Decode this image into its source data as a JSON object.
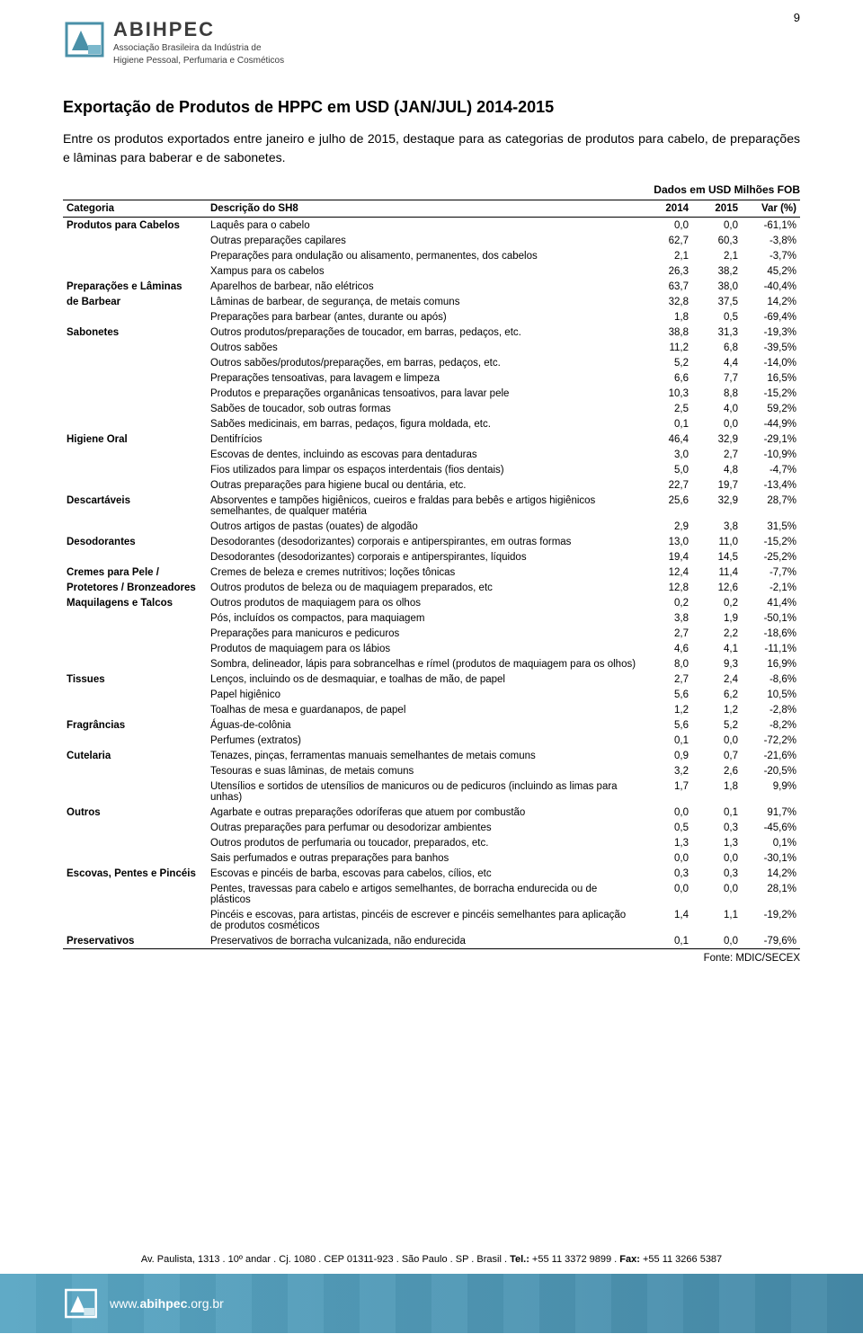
{
  "page_number": "9",
  "logo": {
    "name": "ABIHPEC",
    "subline1": "Associação Brasileira da Indústria de",
    "subline2": "Higiene Pessoal, Perfumaria e Cosméticos",
    "primary_color": "#4a90a8",
    "accent_color": "#3c3c3c"
  },
  "title": "Exportação de Produtos de HPPC em USD (JAN/JUL) 2014-2015",
  "intro": "Entre os produtos exportados entre janeiro e julho de 2015, destaque para as categorias de produtos para cabelo, de preparações e lâminas para baberar e de sabonetes.",
  "table_caption": "Dados em USD Milhões FOB",
  "columns": [
    "Categoria",
    "Descrição do SH8",
    "2014",
    "2015",
    "Var (%)"
  ],
  "rows": [
    {
      "cat": "Produtos para Cabelos",
      "desc": "Laquês para o cabelo",
      "v14": "0,0",
      "v15": "0,0",
      "var": "-61,1%"
    },
    {
      "cat": "",
      "desc": "Outras preparações capilares",
      "v14": "62,7",
      "v15": "60,3",
      "var": "-3,8%"
    },
    {
      "cat": "",
      "desc": "Preparações para ondulação ou alisamento, permanentes, dos cabelos",
      "v14": "2,1",
      "v15": "2,1",
      "var": "-3,7%"
    },
    {
      "cat": "",
      "desc": "Xampus para os cabelos",
      "v14": "26,3",
      "v15": "38,2",
      "var": "45,2%"
    },
    {
      "cat": "Preparações e Lâminas",
      "desc": "Aparelhos de barbear, não elétricos",
      "v14": "63,7",
      "v15": "38,0",
      "var": "-40,4%"
    },
    {
      "cat": "de Barbear",
      "desc": "Lâminas de barbear, de segurança, de metais comuns",
      "v14": "32,8",
      "v15": "37,5",
      "var": "14,2%"
    },
    {
      "cat": "",
      "desc": "Preparações para barbear (antes, durante ou após)",
      "v14": "1,8",
      "v15": "0,5",
      "var": "-69,4%"
    },
    {
      "cat": "Sabonetes",
      "desc": "Outros produtos/preparações de toucador, em barras, pedaços, etc.",
      "v14": "38,8",
      "v15": "31,3",
      "var": "-19,3%"
    },
    {
      "cat": "",
      "desc": "Outros sabões",
      "v14": "11,2",
      "v15": "6,8",
      "var": "-39,5%"
    },
    {
      "cat": "",
      "desc": "Outros sabões/produtos/preparações, em barras, pedaços, etc.",
      "v14": "5,2",
      "v15": "4,4",
      "var": "-14,0%"
    },
    {
      "cat": "",
      "desc": "Preparações tensoativas, para lavagem e limpeza",
      "v14": "6,6",
      "v15": "7,7",
      "var": "16,5%"
    },
    {
      "cat": "",
      "desc": "Produtos e preparações organânicas tensoativos, para lavar pele",
      "v14": "10,3",
      "v15": "8,8",
      "var": "-15,2%"
    },
    {
      "cat": "",
      "desc": "Sabões de toucador, sob outras formas",
      "v14": "2,5",
      "v15": "4,0",
      "var": "59,2%"
    },
    {
      "cat": "",
      "desc": "Sabões medicinais, em barras, pedaços, figura moldada, etc.",
      "v14": "0,1",
      "v15": "0,0",
      "var": "-44,9%"
    },
    {
      "cat": "Higiene Oral",
      "desc": "Dentifrícios",
      "v14": "46,4",
      "v15": "32,9",
      "var": "-29,1%"
    },
    {
      "cat": "",
      "desc": "Escovas de dentes, incluindo as escovas para dentaduras",
      "v14": "3,0",
      "v15": "2,7",
      "var": "-10,9%"
    },
    {
      "cat": "",
      "desc": "Fios utilizados para limpar os espaços interdentais (fios dentais)",
      "v14": "5,0",
      "v15": "4,8",
      "var": "-4,7%"
    },
    {
      "cat": "",
      "desc": "Outras preparações para higiene bucal ou dentária, etc.",
      "v14": "22,7",
      "v15": "19,7",
      "var": "-13,4%"
    },
    {
      "cat": "Descartáveis",
      "desc": "Absorventes e tampões higiênicos, cueiros e fraldas para bebês e artigos higiênicos semelhantes, de qualquer matéria",
      "v14": "25,6",
      "v15": "32,9",
      "var": "28,7%"
    },
    {
      "cat": "",
      "desc": "Outros artigos de pastas (ouates) de algodão",
      "v14": "2,9",
      "v15": "3,8",
      "var": "31,5%"
    },
    {
      "cat": "Desodorantes",
      "desc": "Desodorantes (desodorizantes) corporais e antiperspirantes, em outras formas",
      "v14": "13,0",
      "v15": "11,0",
      "var": "-15,2%"
    },
    {
      "cat": "",
      "desc": "Desodorantes (desodorizantes) corporais e antiperspirantes, líquidos",
      "v14": "19,4",
      "v15": "14,5",
      "var": "-25,2%"
    },
    {
      "cat": "Cremes para Pele /",
      "desc": "Cremes de beleza e cremes nutritivos; loções tônicas",
      "v14": "12,4",
      "v15": "11,4",
      "var": "-7,7%"
    },
    {
      "cat": "Protetores / Bronzeadores",
      "desc": "Outros produtos de beleza ou de maquiagem preparados, etc",
      "v14": "12,8",
      "v15": "12,6",
      "var": "-2,1%"
    },
    {
      "cat": "Maquilagens e Talcos",
      "desc": "Outros produtos de maquiagem para os olhos",
      "v14": "0,2",
      "v15": "0,2",
      "var": "41,4%"
    },
    {
      "cat": "",
      "desc": "Pós, incluídos os compactos, para maquiagem",
      "v14": "3,8",
      "v15": "1,9",
      "var": "-50,1%"
    },
    {
      "cat": "",
      "desc": "Preparações para manicuros e pedicuros",
      "v14": "2,7",
      "v15": "2,2",
      "var": "-18,6%"
    },
    {
      "cat": "",
      "desc": "Produtos de maquiagem para os lábios",
      "v14": "4,6",
      "v15": "4,1",
      "var": "-11,1%"
    },
    {
      "cat": "",
      "desc": "Sombra, delineador, lápis para sobrancelhas e rímel (produtos de maquiagem para os olhos)",
      "v14": "8,0",
      "v15": "9,3",
      "var": "16,9%"
    },
    {
      "cat": "Tissues",
      "desc": "Lenços, incluindo os de desmaquiar, e toalhas de mão, de papel",
      "v14": "2,7",
      "v15": "2,4",
      "var": "-8,6%"
    },
    {
      "cat": "",
      "desc": "Papel higiênico",
      "v14": "5,6",
      "v15": "6,2",
      "var": "10,5%"
    },
    {
      "cat": "",
      "desc": "Toalhas de mesa e guardanapos, de papel",
      "v14": "1,2",
      "v15": "1,2",
      "var": "-2,8%"
    },
    {
      "cat": "Fragrâncias",
      "desc": "Águas-de-colônia",
      "v14": "5,6",
      "v15": "5,2",
      "var": "-8,2%"
    },
    {
      "cat": "",
      "desc": "Perfumes (extratos)",
      "v14": "0,1",
      "v15": "0,0",
      "var": "-72,2%"
    },
    {
      "cat": "Cutelaria",
      "desc": "Tenazes, pinças, ferramentas manuais semelhantes de metais comuns",
      "v14": "0,9",
      "v15": "0,7",
      "var": "-21,6%"
    },
    {
      "cat": "",
      "desc": "Tesouras e suas lâminas, de metais comuns",
      "v14": "3,2",
      "v15": "2,6",
      "var": "-20,5%"
    },
    {
      "cat": "",
      "desc": "Utensílios e sortidos de utensílios de manicuros ou de pedicuros (incluindo as limas para unhas)",
      "v14": "1,7",
      "v15": "1,8",
      "var": "9,9%"
    },
    {
      "cat": "Outros",
      "desc": "Agarbate e outras preparações odoríferas que atuem por combustão",
      "v14": "0,0",
      "v15": "0,1",
      "var": "91,7%"
    },
    {
      "cat": "",
      "desc": "Outras preparações para perfumar ou desodorizar ambientes",
      "v14": "0,5",
      "v15": "0,3",
      "var": "-45,6%"
    },
    {
      "cat": "",
      "desc": "Outros produtos de perfumaria ou toucador, preparados, etc.",
      "v14": "1,3",
      "v15": "1,3",
      "var": "0,1%"
    },
    {
      "cat": "",
      "desc": "Sais perfumados e outras preparações para banhos",
      "v14": "0,0",
      "v15": "0,0",
      "var": "-30,1%"
    },
    {
      "cat": "Escovas, Pentes e Pincéis",
      "desc": "Escovas e pincéis de barba, escovas para cabelos, cílios, etc",
      "v14": "0,3",
      "v15": "0,3",
      "var": "14,2%"
    },
    {
      "cat": "",
      "desc": "Pentes, travessas para cabelo e artigos semelhantes, de borracha endurecida ou de plásticos",
      "v14": "0,0",
      "v15": "0,0",
      "var": "28,1%"
    },
    {
      "cat": "",
      "desc": "Pincéis e escovas, para artistas, pincéis de escrever e pincéis semelhantes para aplicação de produtos cosméticos",
      "v14": "1,4",
      "v15": "1,1",
      "var": "-19,2%"
    },
    {
      "cat": "Preservativos",
      "desc": "Preservativos de borracha vulcanizada, não endurecida",
      "v14": "0,1",
      "v15": "0,0",
      "var": "-79,6%"
    }
  ],
  "source": "Fonte: MDIC/SECEX",
  "footer": {
    "address_prefix": "Av. Paulista, 1313 . 10º andar . Cj. 1080 . CEP 01311-923 . São Paulo . SP . Brasil . ",
    "tel_label": "Tel.:",
    "tel": " +55 11 3372 9899 . ",
    "fax_label": "Fax:",
    "fax": " +55 11 3266 5387",
    "url_prefix": "www.",
    "url_bold": "abihpec",
    "url_suffix": ".org.br",
    "bar_color": "#5aa7c4"
  }
}
